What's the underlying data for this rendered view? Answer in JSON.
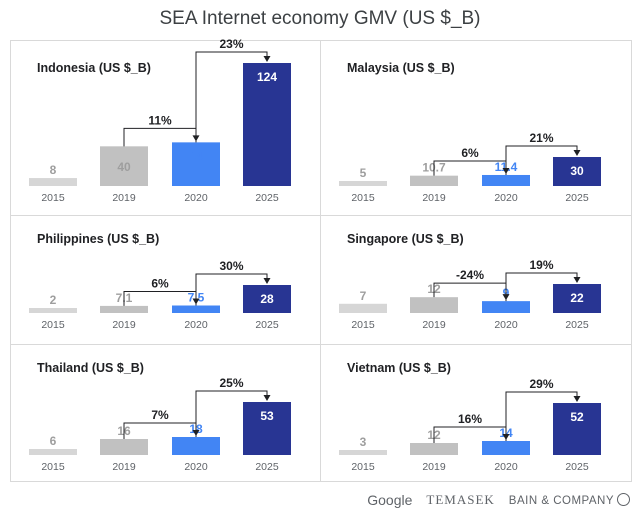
{
  "title": "SEA Internet economy GMV (US $_B)",
  "footer": {
    "google": "Google",
    "temasek": "TEMASEK",
    "bain": "BAIN & COMPANY"
  },
  "colors": {
    "year2015": "#d6d6d6",
    "year2019": "#c1c1c1",
    "year2020": "#4285f4",
    "year2025": "#283593",
    "value2015": "#9e9e9e",
    "value2019": "#9e9e9e",
    "value2020": "#4285f4",
    "value2025": "#ffffff"
  },
  "chart_data": [
    {
      "type": "bar",
      "label": "Indonesia (US $_B)",
      "categories": [
        "2015",
        "2019",
        "2020",
        "2025"
      ],
      "values": [
        8,
        40,
        44,
        124
      ],
      "value_labels": [
        "8",
        "40",
        "44",
        "124"
      ],
      "growth": [
        "11%",
        "23%"
      ]
    },
    {
      "type": "bar",
      "label": "Malaysia (US $_B)",
      "categories": [
        "2015",
        "2019",
        "2020",
        "2025"
      ],
      "values": [
        5,
        10.7,
        11.4,
        30
      ],
      "value_labels": [
        "5",
        "10.7",
        "11.4",
        "30"
      ],
      "growth": [
        "6%",
        "21%"
      ]
    },
    {
      "type": "bar",
      "label": "Philippines (US $_B)",
      "categories": [
        "2015",
        "2019",
        "2020",
        "2025"
      ],
      "values": [
        2,
        7.1,
        7.5,
        28
      ],
      "value_labels": [
        "2",
        "7.1",
        "7.5",
        "28"
      ],
      "growth": [
        "6%",
        "30%"
      ]
    },
    {
      "type": "bar",
      "label": "Singapore (US $_B)",
      "categories": [
        "2015",
        "2019",
        "2020",
        "2025"
      ],
      "values": [
        7,
        12,
        9,
        22
      ],
      "value_labels": [
        "7",
        "12",
        "9",
        "22"
      ],
      "growth": [
        "-24%",
        "19%"
      ]
    },
    {
      "type": "bar",
      "label": "Thailand (US $_B)",
      "categories": [
        "2015",
        "2019",
        "2020",
        "2025"
      ],
      "values": [
        6,
        16,
        18,
        53
      ],
      "value_labels": [
        "6",
        "16",
        "18",
        "53"
      ],
      "growth": [
        "7%",
        "25%"
      ]
    },
    {
      "type": "bar",
      "label": "Vietnam (US $_B)",
      "categories": [
        "2015",
        "2019",
        "2020",
        "2025"
      ],
      "values": [
        3,
        12,
        14,
        52
      ],
      "value_labels": [
        "3",
        "12",
        "14",
        "52"
      ],
      "growth": [
        "16%",
        "29%"
      ]
    }
  ]
}
